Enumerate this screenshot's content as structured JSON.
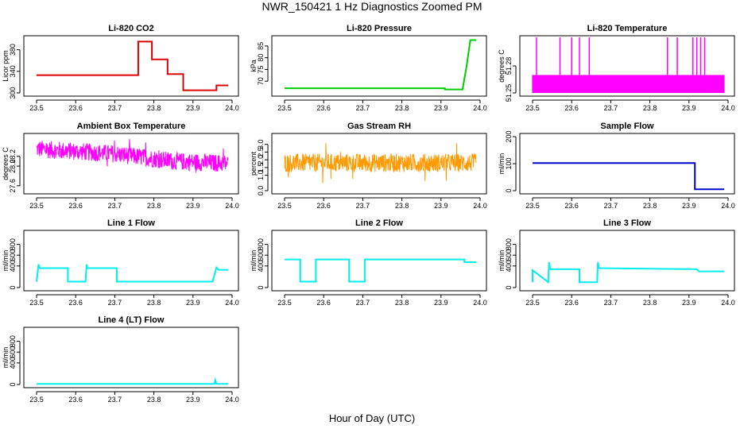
{
  "figure": {
    "title": "NWR_150421  1 Hz Diagnostics Zoomed PM",
    "xlabel": "Hour of Day (UTC)"
  },
  "chart_data": [
    {
      "type": "line",
      "title": "Li-820 CO2",
      "ylabel": "Licor ppm",
      "color": "#dd0000",
      "xlim": [
        23.5,
        24.0
      ],
      "ylim": [
        300,
        400
      ],
      "xticks": [
        "23.5",
        "23.6",
        "23.7",
        "23.8",
        "23.9",
        "24.0"
      ],
      "yticks": [
        300,
        340,
        380
      ],
      "series": [
        {
          "x": [
            23.5,
            23.76,
            23.76,
            23.795,
            23.795,
            23.835,
            23.835,
            23.875,
            23.875,
            23.96,
            23.96,
            23.99
          ],
          "y": [
            333,
            333,
            395,
            395,
            362,
            362,
            335,
            335,
            305,
            305,
            314,
            314
          ]
        }
      ]
    },
    {
      "type": "line",
      "title": "Li-820 Pressure",
      "ylabel": "kPa",
      "color": "#00cc00",
      "xlim": [
        23.5,
        24.0
      ],
      "ylim": [
        65,
        88
      ],
      "xticks": [
        "23.5",
        "23.6",
        "23.7",
        "23.8",
        "23.9",
        "24.0"
      ],
      "yticks": [
        70,
        75,
        80,
        85
      ],
      "series": [
        {
          "x": [
            23.5,
            23.91,
            23.91,
            23.955,
            23.965,
            23.975,
            23.99
          ],
          "y": [
            67,
            67,
            66.5,
            66.5,
            76,
            87.5,
            87.5
          ]
        }
      ]
    },
    {
      "type": "line",
      "title": "Li-820 Temperature",
      "ylabel": "degrees C",
      "color": "#ff00ff",
      "xlim": [
        23.5,
        24.0
      ],
      "ylim": [
        51.25,
        51.31
      ],
      "xticks": [
        "23.5",
        "23.6",
        "23.7",
        "23.8",
        "23.9",
        "24.0"
      ],
      "yticks": [
        "51.25",
        "51.28"
      ],
      "band": [
        51.25,
        51.27
      ],
      "spikes": [
        23.51,
        23.57,
        23.6,
        23.62,
        23.645,
        23.845,
        23.87,
        23.91,
        23.92,
        23.93,
        23.94
      ]
    },
    {
      "type": "line",
      "title": "Ambient Box Temperature",
      "ylabel": "degrees C",
      "color": "#ff00ff",
      "xlim": [
        23.5,
        24.0
      ],
      "ylim": [
        27.5,
        28.6
      ],
      "xticks": [
        "23.5",
        "23.6",
        "23.7",
        "23.8",
        "23.9",
        "24.0"
      ],
      "yticks": [
        "27.6",
        "28.0",
        "28.2"
      ],
      "trend": {
        "x": [
          23.5,
          23.7,
          23.85,
          24.0
        ],
        "y": [
          28.35,
          28.25,
          28.1,
          28.05
        ]
      },
      "noise": 0.18
    },
    {
      "type": "line",
      "title": "Gas Stream RH",
      "ylabel": "percent",
      "color": "#ff9900",
      "xlim": [
        23.5,
        24.0
      ],
      "ylim": [
        0,
        3.5
      ],
      "xticks": [
        "23.5",
        "23.6",
        "23.7",
        "23.8",
        "23.9",
        "24.0"
      ],
      "yticks": [
        "0.0",
        "1.0",
        "1.5",
        "2.0",
        "2.5",
        "3.0"
      ],
      "trend": {
        "x": [
          23.5,
          24.0
        ],
        "y": [
          1.8,
          1.8
        ]
      },
      "noise": 0.6
    },
    {
      "type": "line",
      "title": "Sample Flow",
      "ylabel": "ml/min",
      "color": "#0000cc",
      "xlim": [
        23.5,
        24.0
      ],
      "ylim": [
        0,
        200
      ],
      "xticks": [
        "23.5",
        "23.6",
        "23.7",
        "23.8",
        "23.9",
        "24.0"
      ],
      "yticks": [
        0,
        100,
        200
      ],
      "series": [
        {
          "x": [
            23.5,
            23.915,
            23.915,
            23.99
          ],
          "y": [
            102,
            102,
            5,
            5
          ]
        }
      ]
    },
    {
      "type": "line",
      "title": "Line 1 Flow",
      "ylabel": "ml/min",
      "color": "#00eeee",
      "xlim": [
        23.5,
        24.0
      ],
      "ylim": [
        0,
        1000
      ],
      "xticks": [
        "23.5",
        "23.6",
        "23.7",
        "23.8",
        "23.9",
        "24.0"
      ],
      "yticks": [
        0,
        400,
        600,
        800
      ],
      "series": [
        {
          "x": [
            23.5,
            23.505,
            23.508,
            23.58,
            23.58,
            23.625,
            23.628,
            23.63,
            23.705,
            23.705,
            23.95,
            23.96,
            23.965,
            23.99
          ],
          "y": [
            110,
            430,
            360,
            360,
            110,
            110,
            430,
            360,
            360,
            110,
            110,
            370,
            330,
            330
          ]
        }
      ]
    },
    {
      "type": "line",
      "title": "Line 2 Flow",
      "ylabel": "ml/min",
      "color": "#00eeee",
      "xlim": [
        23.5,
        24.0
      ],
      "ylim": [
        0,
        1000
      ],
      "xticks": [
        "23.5",
        "23.6",
        "23.7",
        "23.8",
        "23.9",
        "24.0"
      ],
      "yticks": [
        0,
        400,
        600,
        800
      ],
      "series": [
        {
          "x": [
            23.5,
            23.54,
            23.54,
            23.58,
            23.58,
            23.665,
            23.665,
            23.705,
            23.705,
            23.96,
            23.96,
            23.99
          ],
          "y": [
            520,
            520,
            110,
            110,
            520,
            520,
            110,
            110,
            520,
            520,
            470,
            470
          ]
        }
      ]
    },
    {
      "type": "line",
      "title": "Line 3 Flow",
      "ylabel": "ml/min",
      "color": "#00eeee",
      "xlim": [
        23.5,
        24.0
      ],
      "ylim": [
        0,
        1000
      ],
      "xticks": [
        "23.5",
        "23.6",
        "23.7",
        "23.8",
        "23.9",
        "24.0"
      ],
      "yticks": [
        0,
        400,
        600,
        800
      ],
      "series": [
        {
          "x": [
            23.5,
            23.5,
            23.54,
            23.542,
            23.545,
            23.62,
            23.62,
            23.665,
            23.667,
            23.67,
            23.92,
            23.925,
            23.99
          ],
          "y": [
            100,
            320,
            100,
            470,
            340,
            340,
            100,
            100,
            470,
            360,
            340,
            300,
            300
          ]
        }
      ]
    },
    {
      "type": "line",
      "title": "Line 4 (LT) Flow",
      "ylabel": "ml/min",
      "color": "#00eeee",
      "xlim": [
        23.5,
        24.0
      ],
      "ylim": [
        0,
        1000
      ],
      "xticks": [
        "23.5",
        "23.6",
        "23.7",
        "23.8",
        "23.9",
        "24.0"
      ],
      "yticks": [
        0,
        400,
        600,
        800
      ],
      "series": [
        {
          "x": [
            23.5,
            23.955,
            23.957,
            23.96,
            23.99
          ],
          "y": [
            12,
            12,
            80,
            12,
            12
          ]
        }
      ]
    }
  ]
}
